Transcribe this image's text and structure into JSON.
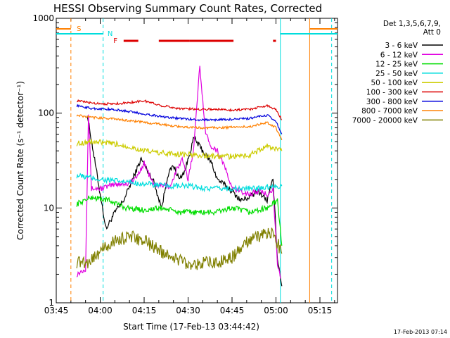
{
  "title": "HESSI Observing Summary Count Rates, Corrected",
  "footer": "17-Feb-2013 07:14",
  "chart_data": {
    "type": "line",
    "title": "HESSI Observing Summary Count Rates, Corrected",
    "xlabel": "Start Time (17-Feb-13 03:44:42)",
    "ylabel": "Corrected Count Rate (s⁻¹ detector⁻¹)",
    "x_scale": "time (minutes after 03:44:42)",
    "y_scale": "log",
    "ylim": [
      1,
      1000
    ],
    "xlim_labels": [
      "03:45",
      "05:20"
    ],
    "x_ticks": [
      {
        "label": "03:45",
        "t": 0
      },
      {
        "label": "04:00",
        "t": 15
      },
      {
        "label": "04:15",
        "t": 30
      },
      {
        "label": "04:30",
        "t": 45
      },
      {
        "label": "04:45",
        "t": 60
      },
      {
        "label": "05:00",
        "t": 75
      },
      {
        "label": "05:15",
        "t": 90
      }
    ],
    "y_ticks": [
      {
        "label": "1",
        "v": 1
      },
      {
        "label": "10",
        "v": 10
      },
      {
        "label": "100",
        "v": 100
      },
      {
        "label": "1000",
        "v": 1000
      }
    ],
    "legend": {
      "position": "top-right",
      "header": [
        "Det 1,3,5,6,7,9,",
        "Att 0"
      ]
    },
    "series": [
      {
        "name": "3 - 6 keV",
        "color": "#000000",
        "x": [
          10.5,
          15,
          17,
          20,
          23,
          26,
          29,
          31,
          33,
          36,
          38,
          40,
          42,
          44,
          47,
          50,
          53,
          55,
          57,
          60,
          63,
          66,
          69,
          72,
          74,
          75.5,
          77
        ],
        "y": [
          100,
          14,
          6,
          9,
          12,
          20,
          33,
          25,
          20,
          10,
          22,
          28,
          20,
          25,
          55,
          40,
          30,
          20,
          18,
          15,
          12,
          13,
          15,
          12,
          20,
          3,
          1.5
        ]
      },
      {
        "name": "6 - 12 keV",
        "color": "#e000e0",
        "x": [
          7,
          10,
          11,
          12,
          15,
          18,
          21,
          24,
          27,
          30,
          33,
          36,
          39,
          41,
          43,
          45,
          47,
          49,
          51,
          53,
          55,
          57,
          60,
          63,
          66,
          69,
          72,
          74,
          75.5,
          76.5
        ],
        "y": [
          2,
          2.3,
          100,
          16,
          16,
          17,
          18,
          18,
          20,
          30,
          18,
          17,
          17,
          25,
          32,
          20,
          45,
          320,
          60,
          45,
          40,
          30,
          16,
          15,
          14,
          15,
          14,
          16,
          2.5,
          1.8
        ]
      },
      {
        "name": "12 - 25 keV",
        "color": "#00dd00",
        "x": [
          7,
          12,
          18,
          24,
          30,
          36,
          42,
          48,
          54,
          60,
          66,
          72,
          75.5,
          77
        ],
        "y": [
          11,
          13,
          12,
          10,
          9.5,
          10,
          9,
          9,
          9,
          10,
          9,
          10,
          12,
          4
        ]
      },
      {
        "name": "25 - 50 keV",
        "color": "#00dddd",
        "x": [
          7,
          15,
          22,
          30,
          38,
          45,
          52,
          60,
          67,
          74,
          77
        ],
        "y": [
          22,
          20,
          19,
          18,
          17,
          17,
          16,
          16,
          16,
          17,
          17
        ]
      },
      {
        "name": "50 - 100 keV",
        "color": "#cccc00",
        "x": [
          7,
          12,
          18,
          24,
          30,
          36,
          42,
          48,
          54,
          60,
          66,
          72,
          77
        ],
        "y": [
          48,
          50,
          48,
          45,
          40,
          38,
          37,
          36,
          35,
          35,
          36,
          45,
          40
        ]
      },
      {
        "name": "100 - 300 keV",
        "color": "#dd0000",
        "x": [
          7,
          12,
          18,
          24,
          30,
          36,
          42,
          48,
          54,
          60,
          66,
          72,
          75,
          77
        ],
        "y": [
          135,
          128,
          125,
          128,
          135,
          120,
          112,
          110,
          110,
          108,
          110,
          120,
          110,
          85
        ]
      },
      {
        "name": "300 - 800 keV",
        "color": "#0000dd",
        "x": [
          7,
          12,
          18,
          24,
          30,
          36,
          42,
          48,
          54,
          60,
          66,
          72,
          75,
          77
        ],
        "y": [
          120,
          112,
          110,
          105,
          98,
          92,
          88,
          85,
          85,
          86,
          88,
          95,
          82,
          60
        ]
      },
      {
        "name": "800 - 7000 keV",
        "color": "#ff8000",
        "x": [
          7,
          12,
          18,
          24,
          30,
          36,
          42,
          48,
          54,
          60,
          66,
          72,
          75,
          77
        ],
        "y": [
          95,
          90,
          88,
          84,
          80,
          76,
          72,
          70,
          70,
          71,
          72,
          80,
          70,
          52
        ]
      },
      {
        "name": "7000 - 20000 keV",
        "color": "#808000",
        "x": [
          7,
          11,
          15,
          20,
          25,
          30,
          35,
          40,
          45,
          50,
          55,
          60,
          65,
          70,
          74,
          77
        ],
        "y": [
          2.7,
          2.7,
          3.5,
          4.5,
          5,
          4.5,
          3.6,
          3,
          2.6,
          2.6,
          2.7,
          3,
          4.3,
          5.2,
          5.5,
          3.3
        ]
      }
    ],
    "annotations": {
      "saa_label": "S",
      "night_label": "N",
      "flare_label": "F"
    }
  }
}
